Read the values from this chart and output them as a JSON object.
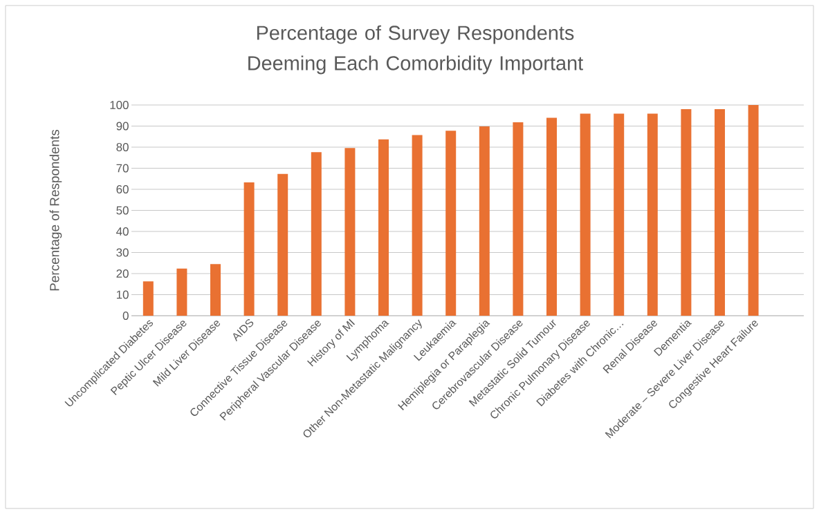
{
  "chart_data": {
    "type": "bar",
    "title": "Percentage of Survey Respondents Deeming Each Comorbidity Important",
    "ylabel": "Percentage of Respondents",
    "categories": [
      "Uncomplicated Diabetes",
      "Peptic Ulcer Disease",
      "Mild Liver Disease",
      "AIDS",
      "Connective Tissue Disease",
      "Peripheral Vascular Disease",
      "History of MI",
      "Lymphoma",
      "Other Non-Metastatic Malignancy",
      "Leukaemia",
      "Hemiplegia or Paraplegia",
      "Cerebrovascular Disease",
      "Metastatic Solid Tumour",
      "Chronic Pulmonary Disease",
      "Diabetes with Chronic…",
      "Renal Disease",
      "Dementia",
      "Moderate – Severe Liver Disease",
      "Congestive Heart Failure",
      null
    ],
    "values": [
      16.3,
      22.4,
      24.5,
      63.3,
      67.3,
      77.6,
      79.6,
      83.7,
      85.7,
      87.8,
      89.8,
      91.8,
      93.9,
      95.9,
      95.9,
      95.9,
      98.0,
      98.0,
      100,
      null
    ],
    "color": "#e97132",
    "ylim": [
      0,
      100
    ],
    "yticks": [
      0,
      10,
      20,
      30,
      40,
      50,
      60,
      70,
      80,
      90,
      100
    ],
    "grid": "y"
  }
}
